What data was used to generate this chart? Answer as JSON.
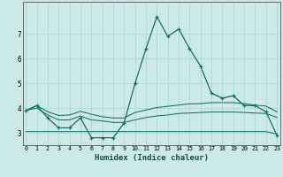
{
  "xlabel": "Humidex (Indice chaleur)",
  "background_color": "#cce9e8",
  "grid_color": "#aad4d2",
  "line_color": "#1a6b63",
  "x_values": [
    0,
    1,
    2,
    3,
    4,
    5,
    6,
    7,
    8,
    9,
    10,
    11,
    12,
    13,
    14,
    15,
    16,
    17,
    18,
    19,
    20,
    21,
    22,
    23
  ],
  "line1": [
    3.9,
    4.1,
    3.6,
    3.2,
    3.2,
    3.6,
    2.8,
    2.8,
    2.8,
    3.4,
    5.0,
    6.4,
    7.7,
    6.9,
    7.2,
    6.4,
    5.7,
    4.6,
    4.4,
    4.5,
    4.1,
    4.1,
    3.85,
    2.9
  ],
  "line2": [
    3.9,
    4.1,
    3.85,
    3.7,
    3.72,
    3.87,
    3.75,
    3.65,
    3.6,
    3.6,
    3.82,
    3.92,
    4.02,
    4.07,
    4.12,
    4.17,
    4.18,
    4.22,
    4.22,
    4.22,
    4.18,
    4.12,
    4.08,
    3.85
  ],
  "line3": [
    3.9,
    4.0,
    3.72,
    3.52,
    3.52,
    3.68,
    3.52,
    3.48,
    3.42,
    3.42,
    3.52,
    3.62,
    3.68,
    3.72,
    3.78,
    3.8,
    3.82,
    3.84,
    3.84,
    3.84,
    3.82,
    3.8,
    3.78,
    3.62
  ],
  "line4": [
    3.05,
    3.05,
    3.05,
    3.05,
    3.05,
    3.05,
    3.05,
    3.05,
    3.05,
    3.05,
    3.05,
    3.05,
    3.05,
    3.05,
    3.05,
    3.05,
    3.05,
    3.05,
    3.05,
    3.05,
    3.05,
    3.05,
    3.05,
    2.95
  ],
  "ylim": [
    2.5,
    8.3
  ],
  "xlim": [
    -0.3,
    23.3
  ],
  "yticks": [
    3,
    4,
    5,
    6,
    7
  ],
  "xticks": [
    0,
    1,
    2,
    3,
    4,
    5,
    6,
    7,
    8,
    9,
    10,
    11,
    12,
    13,
    14,
    15,
    16,
    17,
    18,
    19,
    20,
    21,
    22,
    23
  ]
}
